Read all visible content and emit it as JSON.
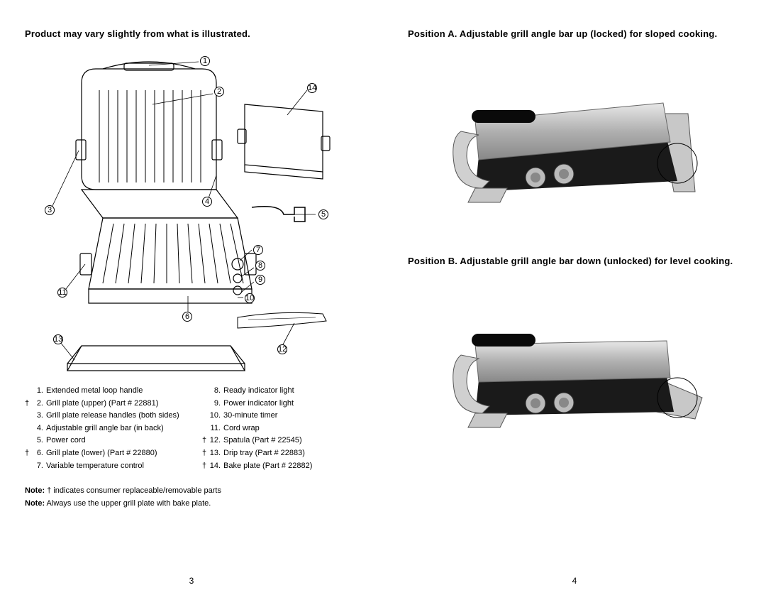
{
  "left": {
    "title": "Product may vary slightly from what is illustrated.",
    "callouts": {
      "c1": "1",
      "c2": "2",
      "c3": "3",
      "c4": "4",
      "c5": "5",
      "c6": "6",
      "c7": "7",
      "c8": "8",
      "c9": "9",
      "c10": "10",
      "c11": "11",
      "c12": "12",
      "c13": "13",
      "c14": "14"
    },
    "parts_col1": [
      {
        "d": "",
        "n": "1.",
        "t": "Extended metal loop handle"
      },
      {
        "d": "†",
        "n": "2.",
        "t": "Grill plate (upper) (Part # 22881)"
      },
      {
        "d": "",
        "n": "3.",
        "t": "Grill plate release handles (both sides)"
      },
      {
        "d": "",
        "n": "4.",
        "t": "Adjustable grill angle bar (in back)"
      },
      {
        "d": "",
        "n": "5.",
        "t": "Power cord"
      },
      {
        "d": "†",
        "n": "6.",
        "t": "Grill plate (lower) (Part # 22880)"
      },
      {
        "d": "",
        "n": "7.",
        "t": "Variable temperature control"
      }
    ],
    "parts_col2": [
      {
        "d": "",
        "n": "8.",
        "t": "Ready indicator light"
      },
      {
        "d": "",
        "n": "9.",
        "t": "Power indicator light"
      },
      {
        "d": "",
        "n": "10.",
        "t": "30-minute timer"
      },
      {
        "d": "",
        "n": "11.",
        "t": "Cord wrap"
      },
      {
        "d": "†",
        "n": "12.",
        "t": "Spatula (Part # 22545)"
      },
      {
        "d": "†",
        "n": "13.",
        "t": "Drip tray (Part # 22883)"
      },
      {
        "d": "†",
        "n": "14.",
        "t": "Bake plate (Part # 22882)"
      }
    ],
    "note1_label": "Note:",
    "note1_text": " † indicates consumer replaceable/removable parts",
    "note2_label": "Note:",
    "note2_text": " Always use the upper grill plate with bake plate.",
    "pagenum": "3"
  },
  "right": {
    "title_a": "Position A. Adjustable grill angle bar up (locked) for sloped cooking.",
    "title_b": "Position B. Adjustable grill angle bar down (unlocked) for level cooking.",
    "pagenum": "4"
  },
  "style": {
    "photo_gray1": "#b8b8b8",
    "photo_gray2": "#8a8a8a",
    "photo_dark": "#2a2a2a",
    "photo_black": "#0f0f0f",
    "photo_light": "#e0e0e0",
    "diagram_stroke": "#000000",
    "diagram_fill": "#ffffff",
    "title_fontsize": 13,
    "body_fontsize": 11
  }
}
